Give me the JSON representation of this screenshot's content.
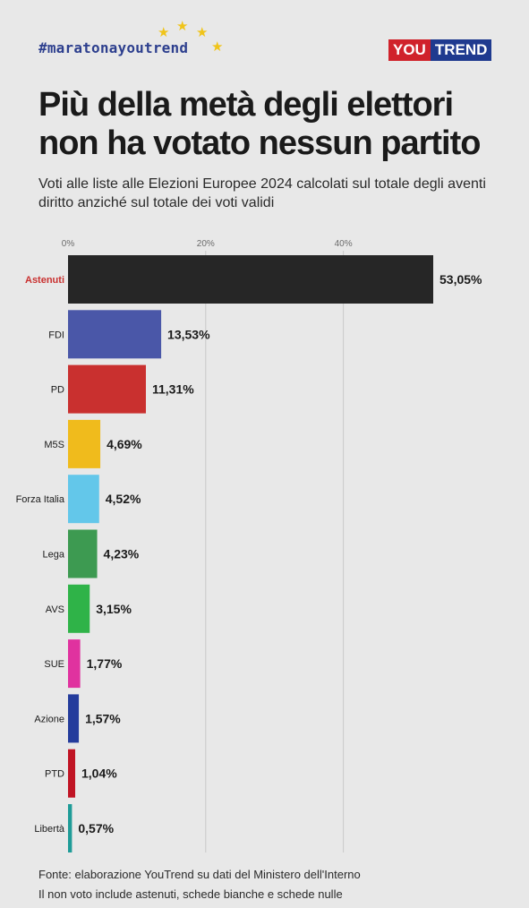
{
  "header": {
    "hashtag": "#maratonayoutrend",
    "logo_you": "YOU",
    "logo_trend": "TREND",
    "title": "Più della metà degli elettori non ha votato nessun partito",
    "subtitle": "Voti alle liste alle Elezioni Europee 2024 calcolati sul totale degli aventi diritto anziché sul totale dei voti validi"
  },
  "chart_data": {
    "type": "bar",
    "orientation": "horizontal",
    "categories": [
      "Astenuti",
      "FDI",
      "PD",
      "M5S",
      "Forza Italia",
      "Lega",
      "AVS",
      "SUE",
      "Azione",
      "PTD",
      "Libertà"
    ],
    "values": [
      53.05,
      13.53,
      11.31,
      4.69,
      4.52,
      4.23,
      3.15,
      1.77,
      1.57,
      1.04,
      0.57
    ],
    "value_labels": [
      "53,05%",
      "13,53%",
      "11,31%",
      "4,69%",
      "4,52%",
      "4,23%",
      "3,15%",
      "1,77%",
      "1,57%",
      "1,04%",
      "0,57%"
    ],
    "colors": [
      "#262626",
      "#4a57a8",
      "#c9302f",
      "#f0bb1c",
      "#63c7ea",
      "#3d9a51",
      "#2fb348",
      "#e0329f",
      "#243c9c",
      "#c01424",
      "#1f9c98"
    ],
    "highlight_label_color": "#c9302f",
    "xlim": [
      0,
      53.05
    ],
    "ticks": [
      0,
      20,
      40
    ],
    "tick_labels": [
      "0%",
      "20%",
      "40%"
    ],
    "grid": true
  },
  "footer": {
    "source_line1": "Fonte: elaborazione YouTrend su dati del Ministero dell'Interno",
    "source_line2": "Il non voto include astenuti, schede bianche e schede nulle"
  }
}
